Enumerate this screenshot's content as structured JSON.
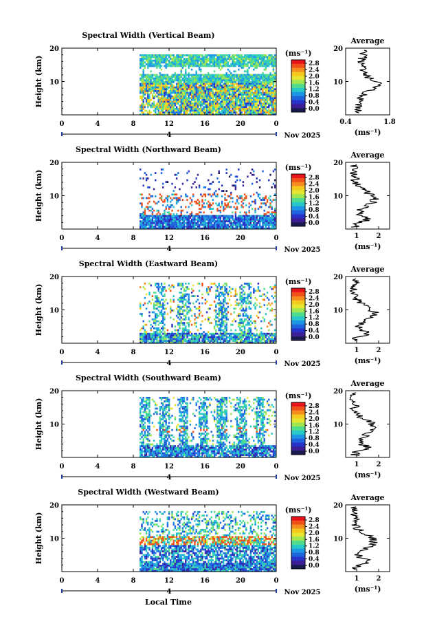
{
  "figure": {
    "xlabel": "Local Time",
    "date_label": "Nov 2025"
  },
  "colorbar": {
    "unit": "(ms⁻¹)",
    "ticks": [
      "2.8",
      "2.4",
      "2.0",
      "1.6",
      "1.2",
      "0.8",
      "0.4",
      "0.0"
    ],
    "colors": [
      "#e8141a",
      "#f0501a",
      "#f58c1e",
      "#f5c81e",
      "#e6e632",
      "#a0e650",
      "#50dc8c",
      "#28c8c8",
      "#1e96e6",
      "#1e64dc",
      "#2832c8",
      "#3c1e96",
      "#1a1a50"
    ]
  },
  "chart_data": [
    {
      "type": "heatmap",
      "id": "vertical",
      "title": "Spectral Width (Vertical Beam)",
      "ylabel": "Height (km)",
      "ylim": [
        0,
        20
      ],
      "yticks": [
        "20",
        "10"
      ],
      "xlim": [
        0,
        24
      ],
      "xticks": [
        "0",
        "4",
        "8",
        "12",
        "16",
        "20",
        "0"
      ],
      "data_start_hour": 8.7,
      "below_axis_label": "4",
      "pattern": "dense",
      "profile": {
        "title": "Average",
        "xlabel": "(ms⁻¹)",
        "xticks": [
          "0.4",
          "1.8"
        ],
        "xlim": [
          0.4,
          1.8
        ]
      }
    },
    {
      "type": "heatmap",
      "id": "northward",
      "title": "Spectral Width (Northward Beam)",
      "ylabel": "Height (km)",
      "ylim": [
        0,
        20
      ],
      "yticks": [
        "20",
        "10"
      ],
      "xlim": [
        0,
        24
      ],
      "xticks": [
        "0",
        "4",
        "8",
        "12",
        "16",
        "20",
        "0"
      ],
      "data_start_hour": 8.7,
      "below_axis_label": "4",
      "pattern": "sparse",
      "profile": {
        "title": "Average",
        "xlabel": "(ms⁻¹)",
        "xticks": [
          "1",
          "2"
        ],
        "xlim": [
          0.5,
          2.5
        ]
      }
    },
    {
      "type": "heatmap",
      "id": "eastward",
      "title": "Spectral Width (Eastward Beam)",
      "ylabel": "Height (km)",
      "ylim": [
        0,
        20
      ],
      "yticks": [
        "20",
        "10"
      ],
      "xlim": [
        0,
        24
      ],
      "xticks": [
        "0",
        "4",
        "8",
        "12",
        "16",
        "20",
        "0"
      ],
      "data_start_hour": 8.7,
      "below_axis_label": "4",
      "pattern": "blocky",
      "profile": {
        "title": "Average",
        "xlabel": "(ms⁻¹)",
        "xticks": [
          "1",
          "2"
        ],
        "xlim": [
          0.5,
          2.5
        ]
      }
    },
    {
      "type": "heatmap",
      "id": "southward",
      "title": "Spectral Width (Southward Beam)",
      "ylabel": "Height (km)",
      "ylim": [
        0,
        20
      ],
      "yticks": [
        "20",
        "10"
      ],
      "xlim": [
        0,
        24
      ],
      "xticks": [
        "0",
        "4",
        "8",
        "12",
        "16",
        "20",
        "0"
      ],
      "data_start_hour": 8.7,
      "below_axis_label": "4",
      "pattern": "columns",
      "profile": {
        "title": "Average",
        "xlabel": "(ms⁻¹)",
        "xticks": [
          "1",
          "2"
        ],
        "xlim": [
          0.5,
          2.5
        ]
      }
    },
    {
      "type": "heatmap",
      "id": "westward",
      "title": "Spectral Width (Westward Beam)",
      "ylabel": "Height (km)",
      "ylim": [
        0,
        20
      ],
      "yticks": [
        "20",
        "10"
      ],
      "xlim": [
        0,
        24
      ],
      "xticks": [
        "0",
        "4",
        "8",
        "12",
        "16",
        "20",
        "0"
      ],
      "data_start_hour": 8.7,
      "below_axis_label": "4",
      "pattern": "banded",
      "profile": {
        "title": "Average",
        "xlabel": "(ms⁻¹)",
        "xticks": [
          "1",
          "2"
        ],
        "xlim": [
          0.5,
          2.5
        ]
      }
    }
  ]
}
